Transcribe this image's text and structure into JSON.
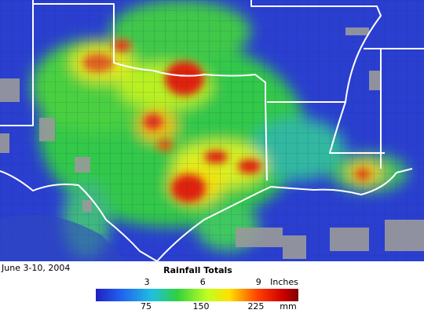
{
  "date": "June 3-10, 2004",
  "legend": {
    "title": "Rainfall Totals",
    "inch_ticks": [
      3,
      6,
      9
    ],
    "inch_unit": "Inches",
    "mm_ticks": [
      75,
      150,
      225
    ],
    "mm_unit": "mm"
  }
}
